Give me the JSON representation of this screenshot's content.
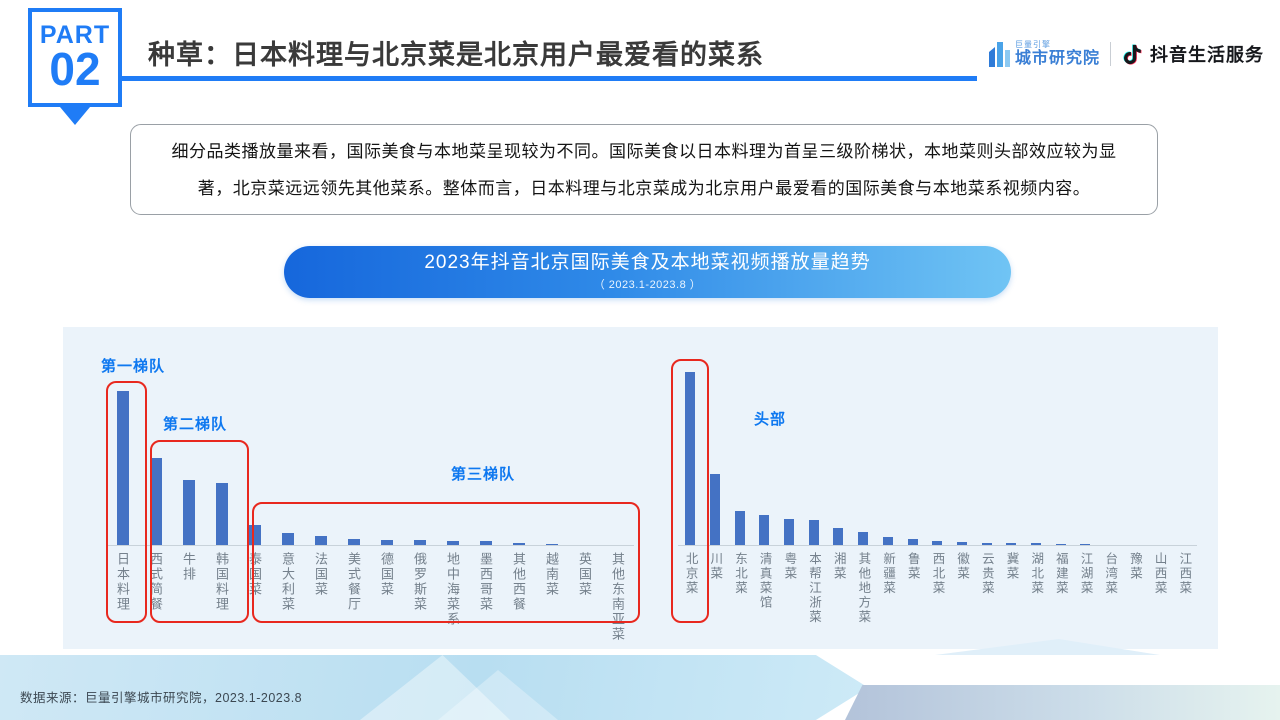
{
  "header": {
    "part_label": "PART",
    "part_number": "02",
    "title": "种草：日本料理与北京菜是北京用户最爱看的菜系",
    "brand_left_small": "巨量引擎",
    "brand_left_main": "城市研究院",
    "brand_right": "抖音生活服务"
  },
  "insight": {
    "text": "细分品类播放量来看，国际美食与本地菜呈现较为不同。国际美食以日本料理为首呈三级阶梯状，本地菜则头部效应较为显著，北京菜远远领先其他菜系。整体而言，日本料理与北京菜成为北京用户最爱看的国际美食与本地菜系视频内容。"
  },
  "chart_header": {
    "title": "2023年抖音北京国际美食及本地菜视频播放量趋势",
    "subtitle": "（ 2023.1-2023.8 ）"
  },
  "chart_data": {
    "type": "bar",
    "title": "2023年抖音北京国际美食及本地菜视频播放量趋势",
    "subtitle": "2023.1-2023.8",
    "value_unit": "相对播放量指数（无坐标轴，按柱高估算，北京菜=100）",
    "bar_color": "#4472c4",
    "grid": false,
    "legend": false,
    "groups": [
      {
        "name": "国际美食",
        "categories": [
          "日本料理",
          "西式简餐",
          "牛排",
          "韩国料理",
          "泰国菜",
          "意大利菜",
          "法国菜",
          "美式餐厅",
          "德国菜",
          "俄罗斯菜",
          "地中海菜系",
          "墨西哥菜",
          "其他西餐",
          "越南菜",
          "英国菜",
          "其他东南亚菜"
        ],
        "values": [
          89,
          50.4,
          38.1,
          36.4,
          12.1,
          7.5,
          5.7,
          3.9,
          3.6,
          3.6,
          2.8,
          2.7,
          1.9,
          0.9,
          0.6,
          0.4
        ]
      },
      {
        "name": "本地菜",
        "categories": [
          "北京菜",
          "川菜",
          "东北菜",
          "清真菜馆",
          "粤菜",
          "本帮江浙菜",
          "湘菜",
          "其他地方菜",
          "新疆菜",
          "鲁菜",
          "西北菜",
          "徽菜",
          "云贵菜",
          "冀菜",
          "湖北菜",
          "福建菜",
          "江湖菜",
          "台湾菜",
          "豫菜",
          "山西菜",
          "江西菜"
        ],
        "values": [
          100,
          41.5,
          20.1,
          17.8,
          15.7,
          14.8,
          10.2,
          8,
          5.3,
          3.8,
          2.9,
          2.2,
          1.9,
          1.7,
          1.5,
          1.2,
          1,
          0.8,
          0.6,
          0.4,
          0.3
        ]
      }
    ],
    "annotations": [
      {
        "label": "第一梯队",
        "categories": [
          "日本料理"
        ]
      },
      {
        "label": "第二梯队",
        "categories": [
          "西式简餐",
          "牛排",
          "韩国料理"
        ]
      },
      {
        "label": "第三梯队",
        "categories": [
          "泰国菜",
          "意大利菜",
          "法国菜",
          "美式餐厅",
          "德国菜",
          "俄罗斯菜",
          "地中海菜系",
          "墨西哥菜",
          "其他西餐",
          "越南菜",
          "英国菜",
          "其他东南亚菜"
        ]
      },
      {
        "label": "头部",
        "categories": [
          "北京菜"
        ]
      }
    ]
  },
  "footer": {
    "source": "数据来源：巨量引擎城市研究院，2023.1-2023.8"
  },
  "colors": {
    "accent_blue": "#1f7cf6",
    "bar_blue": "#4472c4",
    "tier_red": "#e8281e",
    "tier_label_blue": "#0e78f0",
    "panel_bg": "#ebf3fa"
  }
}
